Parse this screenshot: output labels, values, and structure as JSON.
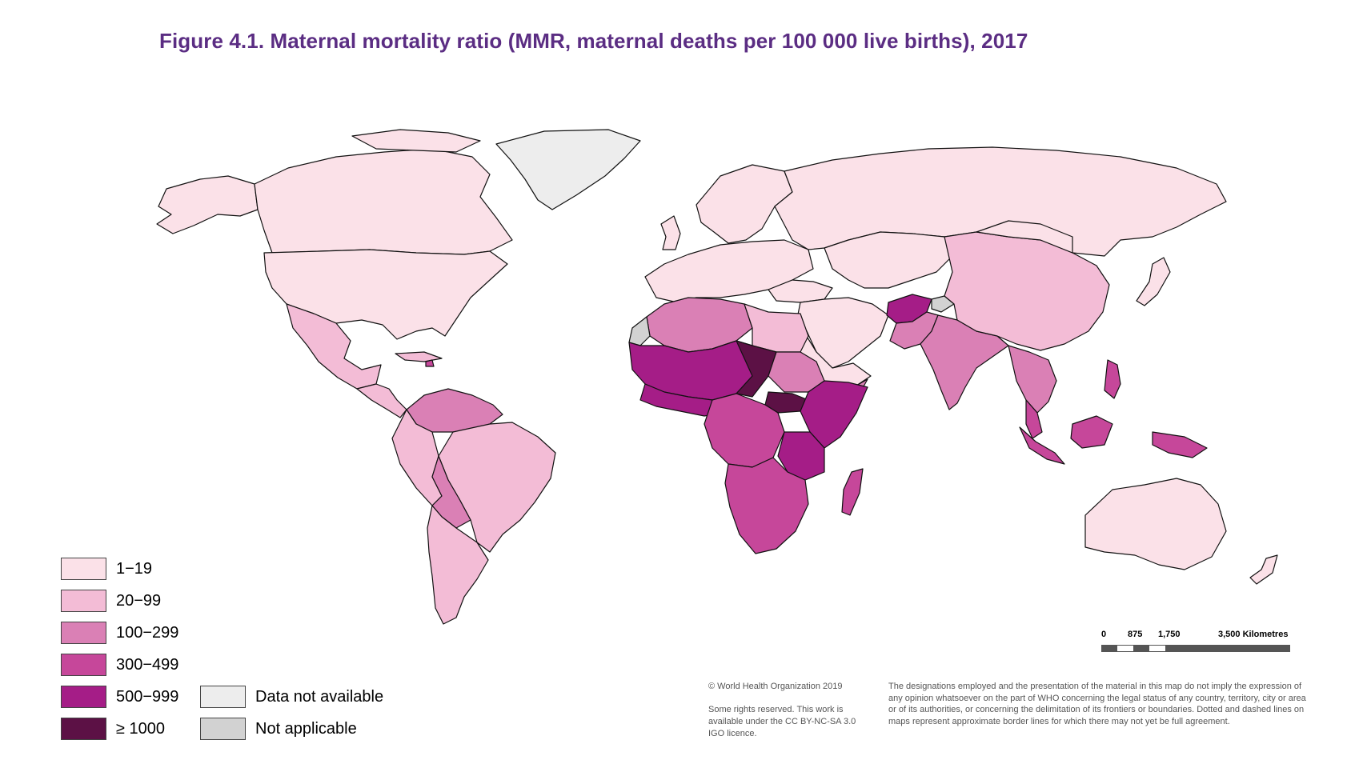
{
  "title": "Figure 4.1. Maternal mortality ratio (MMR, maternal deaths per 100 000 live births), 2017",
  "colors": {
    "c1": "#fbe1e8",
    "c2": "#f3bcd6",
    "c3": "#da80b5",
    "c4": "#c6479a",
    "c5": "#a51d87",
    "c6": "#5c1145",
    "na": "#ededed",
    "notapp": "#d2d2d2"
  },
  "legend": [
    {
      "label": "1−19",
      "color_key": "c1"
    },
    {
      "label": "20−99",
      "color_key": "c2"
    },
    {
      "label": "100−299",
      "color_key": "c3"
    },
    {
      "label": "300−499",
      "color_key": "c4"
    },
    {
      "label": "500−999",
      "color_key": "c5"
    },
    {
      "label": "≥ 1000",
      "color_key": "c6"
    },
    {
      "label": "Data not available",
      "color_key": "na"
    },
    {
      "label": "Not applicable",
      "color_key": "notapp"
    }
  ],
  "scale": {
    "labels": [
      "0",
      "875",
      "1,750",
      "3,500 Kilometres"
    ]
  },
  "copyright": {
    "line1": "© World Health Organization 2019",
    "line2": "Some rights reserved. This work is available under the CC BY-NC-SA 3.0 IGO licence."
  },
  "disclaimer": "The designations employed and the presentation of the material in this map do not imply the expression of any opinion whatsoever on the part of WHO concerning the legal status of any country, territory, city or area or of its authorities, or concerning the delimitation of its frontiers or boundaries. Dotted and dashed lines on maps represent approximate border lines for which there may not yet be full agreement."
}
